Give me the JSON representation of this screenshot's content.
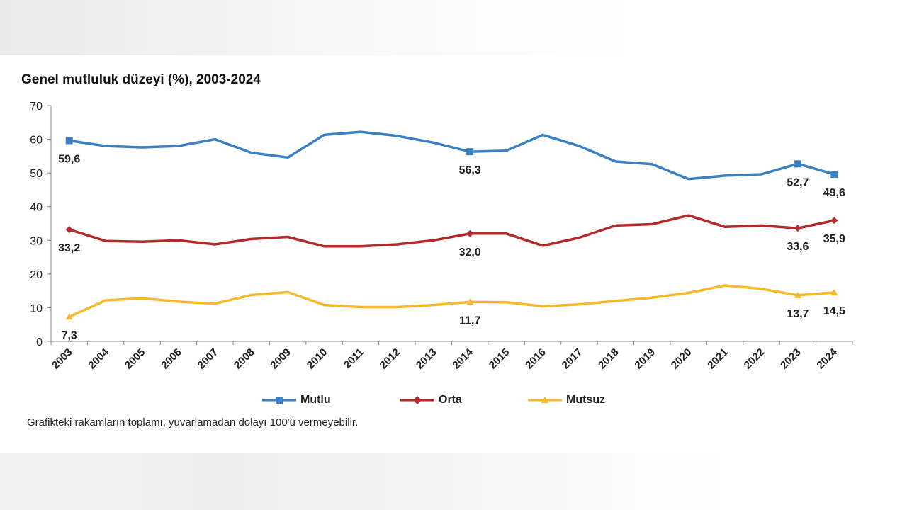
{
  "chart_data": {
    "type": "line",
    "title": "Genel mutluluk düzeyi (%), 2003-2024",
    "categories": [
      "2003",
      "2004",
      "2005",
      "2006",
      "2007",
      "2008",
      "2009",
      "2010",
      "2011",
      "2012",
      "2013",
      "2014",
      "2015",
      "2016",
      "2017",
      "2018",
      "2019",
      "2020",
      "2021",
      "2022",
      "2023",
      "2024"
    ],
    "ylim": [
      0,
      70
    ],
    "yticks": [
      0,
      10,
      20,
      30,
      40,
      50,
      60,
      70
    ],
    "xlabel": "",
    "ylabel": "",
    "legend_position": "bottom",
    "series": [
      {
        "name": "Mutlu",
        "color": "#3b80c3",
        "marker": "square",
        "values": [
          59.6,
          58.0,
          57.6,
          58.0,
          60.0,
          56.0,
          54.6,
          61.3,
          62.2,
          61.0,
          59.0,
          56.3,
          56.6,
          61.3,
          58.0,
          53.4,
          52.6,
          48.2,
          49.2,
          49.6,
          52.7,
          49.6
        ],
        "labels": [
          {
            "index": 0,
            "text": "59,6"
          },
          {
            "index": 11,
            "text": "56,3"
          },
          {
            "index": 20,
            "text": "52,7"
          },
          {
            "index": 21,
            "text": "49,6"
          }
        ]
      },
      {
        "name": "Orta",
        "color": "#b22a2a",
        "marker": "diamond",
        "values": [
          33.2,
          29.8,
          29.6,
          30.0,
          28.8,
          30.4,
          31.0,
          28.2,
          28.2,
          28.8,
          30.0,
          32.0,
          32.0,
          28.4,
          30.8,
          34.4,
          34.8,
          37.4,
          34.0,
          34.4,
          33.6,
          35.9
        ],
        "labels": [
          {
            "index": 0,
            "text": "33,2"
          },
          {
            "index": 11,
            "text": "32,0"
          },
          {
            "index": 20,
            "text": "33,6"
          },
          {
            "index": 21,
            "text": "35,9"
          }
        ]
      },
      {
        "name": "Mutsuz",
        "color": "#f6b92b",
        "marker": "triangle",
        "values": [
          7.3,
          12.2,
          12.8,
          11.8,
          11.2,
          13.8,
          14.6,
          10.8,
          10.2,
          10.2,
          10.8,
          11.7,
          11.6,
          10.4,
          11.0,
          12.0,
          13.0,
          14.4,
          16.6,
          15.6,
          13.7,
          14.5
        ],
        "labels": [
          {
            "index": 0,
            "text": "7,3"
          },
          {
            "index": 11,
            "text": "11,7"
          },
          {
            "index": 20,
            "text": "13,7"
          },
          {
            "index": 21,
            "text": "14,5"
          }
        ]
      }
    ]
  },
  "footnote": "Grafikteki rakamların toplamı, yuvarlamadan dolayı 100'ü vermeyebilir."
}
